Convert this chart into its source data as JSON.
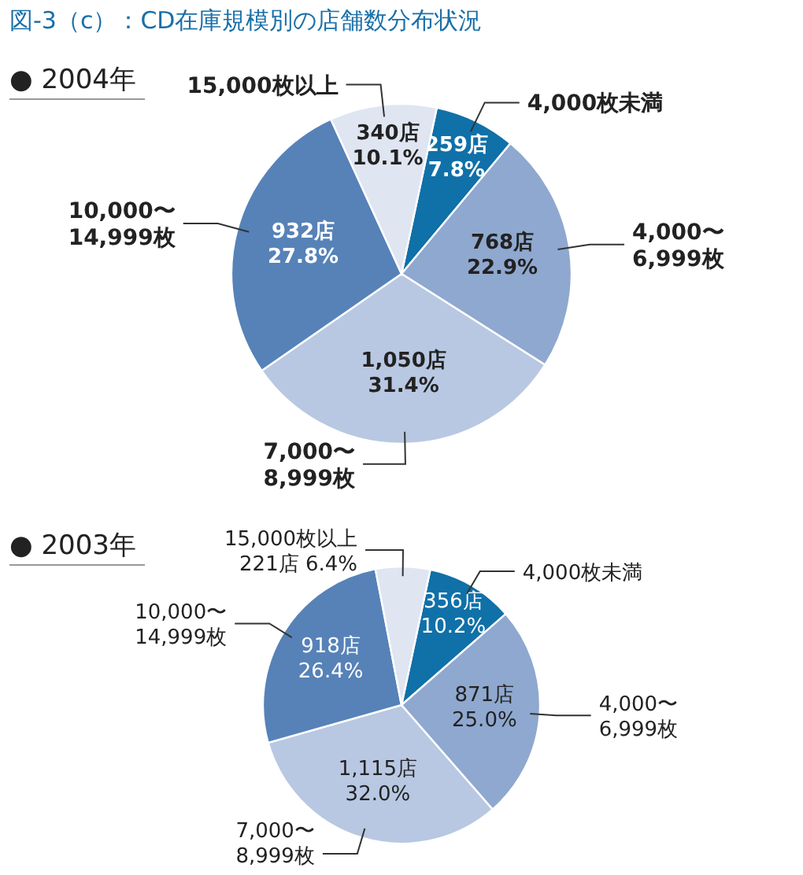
{
  "chart_data": [
    {
      "type": "pie",
      "title": "図-3（c）：CD在庫規模別の店舗数分布状況",
      "subtitle": "● 2004年",
      "categories": [
        "4,000枚未満",
        "4,000〜\n6,999枚",
        "7,000〜\n8,999枚",
        "10,000〜\n14,999枚",
        "15,000枚以上"
      ],
      "values": [
        259,
        768,
        1050,
        932,
        340
      ],
      "value_labels": [
        "259店\n7.8%",
        "768店\n22.9%",
        "1,050店\n31.4%",
        "932店\n27.8%",
        "340店\n10.1%"
      ],
      "colors": [
        "#1070a8",
        "#8fa8cf",
        "#b8c8e2",
        "#5682b8",
        "#dfe5f1"
      ]
    },
    {
      "type": "pie",
      "subtitle": "● 2003年",
      "categories": [
        "4,000枚未満",
        "4,000〜\n6,999枚",
        "7,000〜\n8,999枚",
        "10,000〜\n14,999枚",
        "15,000枚以上"
      ],
      "values": [
        356,
        871,
        1115,
        918,
        221
      ],
      "value_labels": [
        "356店\n10.2%",
        "871店\n25.0%",
        "1,115店\n32.0%",
        "918店\n26.4%",
        "221店 6.4%"
      ],
      "colors": [
        "#1070a8",
        "#8fa8cf",
        "#b8c8e2",
        "#5682b8",
        "#dfe5f1"
      ]
    }
  ]
}
